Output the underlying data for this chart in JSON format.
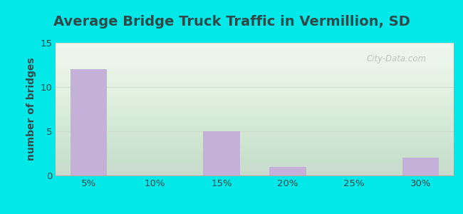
{
  "title": "Average Bridge Truck Traffic in Vermillion, SD",
  "categories": [
    "5%",
    "10%",
    "15%",
    "20%",
    "25%",
    "30%"
  ],
  "values": [
    12,
    0,
    5,
    1,
    0,
    2
  ],
  "bar_color": "#c4b0d8",
  "ylabel": "number of bridges",
  "ylim": [
    0,
    15
  ],
  "yticks": [
    0,
    5,
    10,
    15
  ],
  "title_fontsize": 14,
  "label_fontsize": 10,
  "tick_fontsize": 9.5,
  "outer_bg_color": "#00e8e8",
  "title_color": "#2d4a4a",
  "ylabel_color": "#2d4a4a",
  "tick_color": "#2d4a4a",
  "watermark_text": "City-Data.com",
  "watermark_color": "#b0b8b0",
  "grid_color": "#d0ddd0",
  "plot_bg_color": "#edf5ec"
}
